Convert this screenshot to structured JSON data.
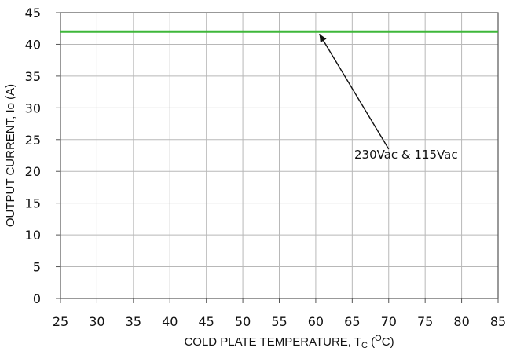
{
  "chart_data": {
    "type": "line",
    "xlabel": "COLD PLATE TEMPERATURE, T",
    "xlabel_sub": "C",
    "xlabel_mid": " (",
    "xlabel_sup": "O",
    "xlabel_end": "C)",
    "ylabel": "OUTPUT CURRENT, Io  (A)",
    "xlim": [
      25,
      85
    ],
    "ylim": [
      0,
      45
    ],
    "xticks": [
      25,
      30,
      35,
      40,
      45,
      50,
      55,
      60,
      65,
      70,
      75,
      80,
      85
    ],
    "yticks": [
      0,
      5,
      10,
      15,
      20,
      25,
      30,
      35,
      40,
      45
    ],
    "grid": true,
    "series": [
      {
        "name": "230Vac & 115Vac",
        "color": "#3fb73a",
        "x": [
          25,
          85
        ],
        "y": [
          42,
          42
        ]
      }
    ],
    "annotation": {
      "text": "230Vac & 115Vac",
      "points_to": {
        "x": 60.5,
        "y": 42
      },
      "label_at": {
        "x": 70,
        "y": 23.5
      }
    }
  }
}
